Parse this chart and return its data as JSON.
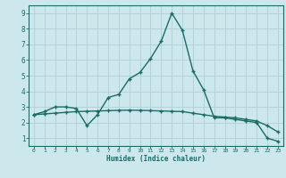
{
  "title": "",
  "xlabel": "Humidex (Indice chaleur)",
  "bg_color": "#cce8ec",
  "grid_color": "#b0d0d5",
  "line_color": "#1a6b65",
  "xlim": [
    -0.5,
    23.5
  ],
  "ylim": [
    0.5,
    9.5
  ],
  "xticks": [
    0,
    1,
    2,
    3,
    4,
    5,
    6,
    7,
    8,
    9,
    10,
    11,
    12,
    13,
    14,
    15,
    16,
    17,
    18,
    19,
    20,
    21,
    22,
    23
  ],
  "yticks": [
    1,
    2,
    3,
    4,
    5,
    6,
    7,
    8,
    9
  ],
  "series1_x": [
    0,
    1,
    2,
    3,
    4,
    5,
    6,
    7,
    8,
    9,
    10,
    11,
    12,
    13,
    14,
    15,
    16,
    17,
    18,
    19,
    20,
    21,
    22,
    23
  ],
  "series1_y": [
    2.5,
    2.7,
    3.0,
    3.0,
    2.9,
    1.8,
    2.5,
    3.6,
    3.8,
    4.8,
    5.2,
    6.1,
    7.2,
    9.0,
    7.9,
    5.3,
    4.1,
    2.3,
    2.3,
    2.2,
    2.1,
    2.0,
    1.0,
    0.8
  ],
  "series2_x": [
    0,
    1,
    2,
    3,
    4,
    5,
    6,
    7,
    8,
    9,
    10,
    11,
    12,
    13,
    14,
    15,
    16,
    17,
    18,
    19,
    20,
    21,
    22,
    23
  ],
  "series2_y": [
    2.5,
    2.55,
    2.6,
    2.65,
    2.7,
    2.72,
    2.74,
    2.76,
    2.78,
    2.79,
    2.78,
    2.76,
    2.74,
    2.72,
    2.7,
    2.6,
    2.5,
    2.4,
    2.35,
    2.3,
    2.2,
    2.1,
    1.8,
    1.4
  ]
}
